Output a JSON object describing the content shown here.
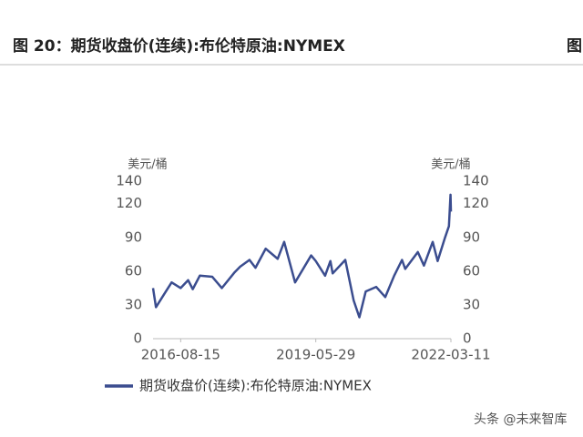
{
  "header": {
    "title": "图 20：期货收盘价(连续):布伦特原油:NYMEX",
    "next_title": "图"
  },
  "chart_data": {
    "type": "line",
    "y_label": "美元/桶",
    "y2_label": "美元/桶",
    "x": [
      "2016-01-20",
      "2016-02-11",
      "2016-04-15",
      "2016-06-08",
      "2016-08-15",
      "2016-10-10",
      "2016-11-14",
      "2017-01-06",
      "2017-04-10",
      "2017-06-21",
      "2017-09-25",
      "2017-11-06",
      "2018-01-15",
      "2018-03-01",
      "2018-05-17",
      "2018-08-15",
      "2018-10-03",
      "2018-12-24",
      "2019-04-24",
      "2019-05-29",
      "2019-08-07",
      "2019-09-16",
      "2019-10-03",
      "2020-01-06",
      "2020-03-09",
      "2020-04-21",
      "2020-06-08",
      "2020-08-26",
      "2020-11-02",
      "2021-01-08",
      "2021-03-08",
      "2021-04-01",
      "2021-07-05",
      "2021-08-20",
      "2021-10-25",
      "2021-12-01",
      "2022-01-26",
      "2022-02-24",
      "2022-03-08",
      "2022-03-11"
    ],
    "series": [
      {
        "name": "期货收盘价(连续):布伦特原油:NYMEX",
        "color": "#3b4d8f",
        "values": [
          45,
          28,
          40,
          50,
          45,
          52,
          44,
          56,
          55,
          45,
          59,
          64,
          70,
          63,
          80,
          71,
          86,
          50,
          74,
          69,
          56,
          69,
          58,
          70,
          34,
          19,
          42,
          46,
          37,
          56,
          70,
          62,
          77,
          65,
          86,
          69,
          90,
          100,
          128,
          113
        ]
      }
    ],
    "xlim": [
      "2016-01-20",
      "2022-03-11"
    ],
    "xticks": [
      "2016-08-15",
      "2019-05-29",
      "2022-03-11"
    ],
    "ylim": [
      0,
      140
    ],
    "yticks": [
      0,
      30,
      60,
      90,
      120,
      140
    ],
    "y2lim": [
      0,
      140
    ],
    "y2ticks": [
      0,
      30,
      60,
      90,
      120,
      140
    ],
    "grid": false
  },
  "watermark": "头条 @未来智库"
}
